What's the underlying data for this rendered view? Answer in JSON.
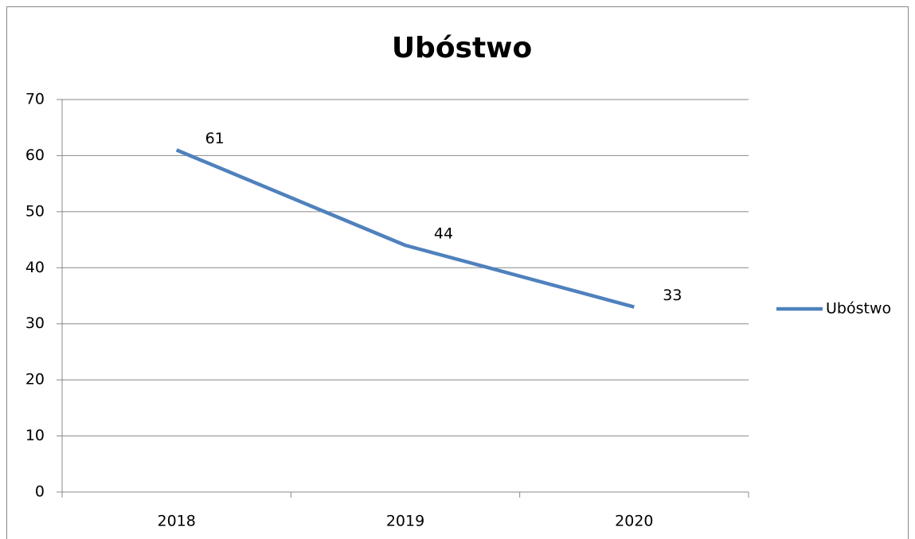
{
  "chart_data": {
    "type": "line",
    "title": "Ubóstwo",
    "categories": [
      "2018",
      "2019",
      "2020"
    ],
    "series": [
      {
        "name": "Ubóstwo",
        "color": "#4f81bd",
        "values": [
          61,
          44,
          33
        ]
      }
    ],
    "ylim": [
      0,
      70
    ],
    "yticks": [
      0,
      10,
      20,
      30,
      40,
      50,
      60,
      70
    ],
    "grid": true,
    "legend": "right"
  }
}
